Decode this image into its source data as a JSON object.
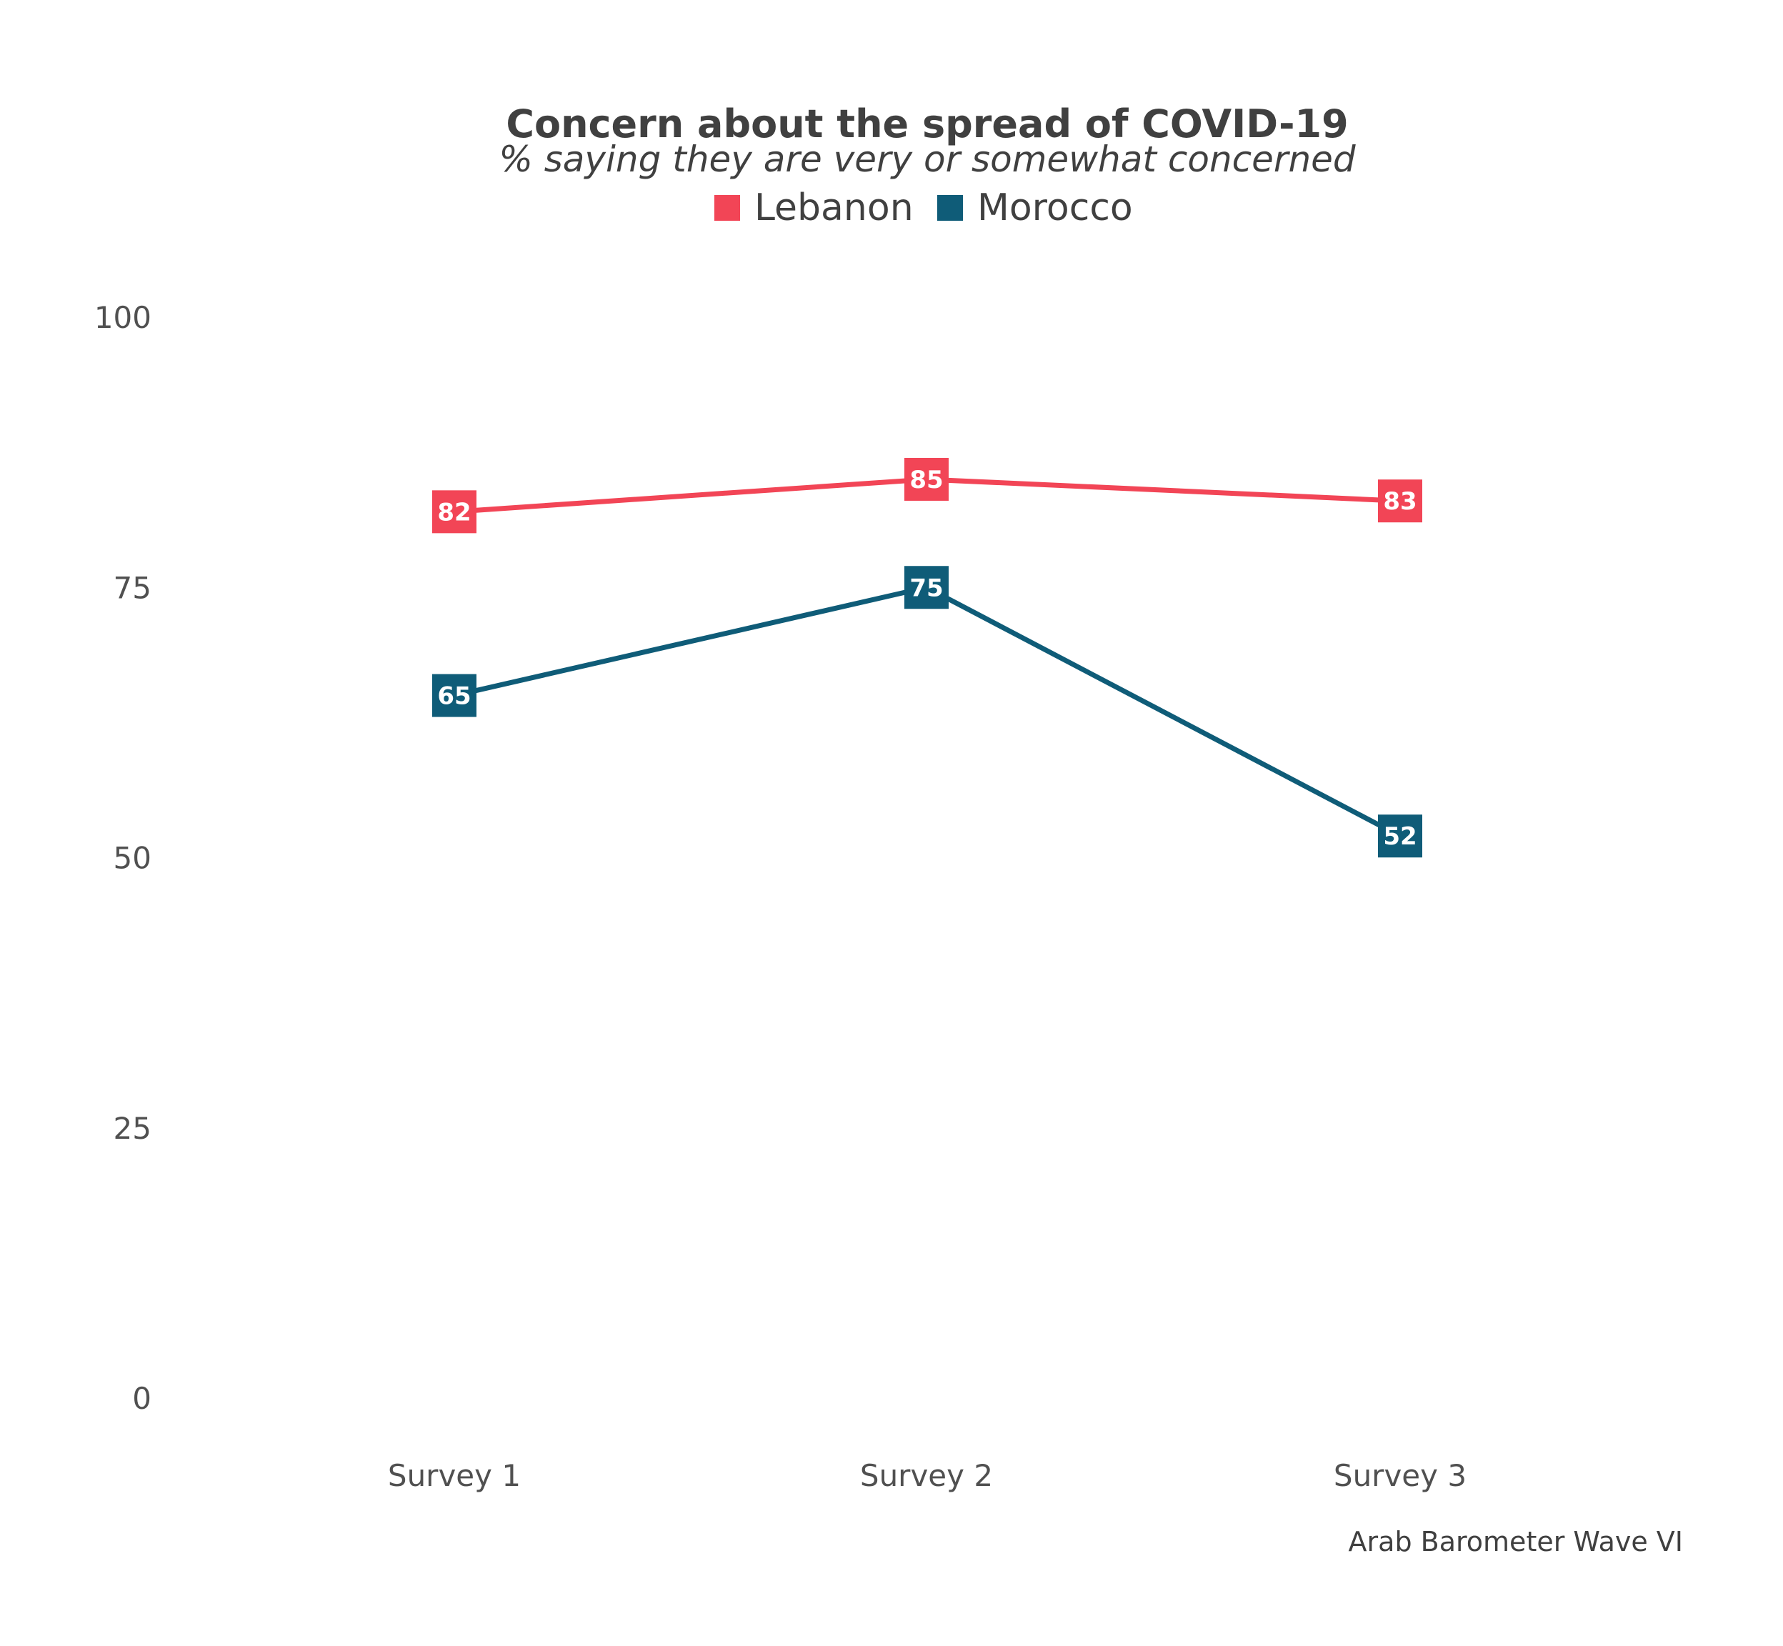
{
  "chart_data": {
    "type": "line",
    "title": "Concern about the spread of COVID-19",
    "subtitle": "% saying they are very or somewhat concerned",
    "caption": "Arab Barometer Wave VI",
    "categories": [
      "Survey 1",
      "Survey 2",
      "Survey 3"
    ],
    "ylim": [
      0,
      100
    ],
    "yticks": [
      0,
      25,
      50,
      75,
      100
    ],
    "grid": false,
    "legend_position": "top",
    "series": [
      {
        "name": "Lebanon",
        "color": "#F24556",
        "values": [
          82,
          85,
          83
        ]
      },
      {
        "name": "Morocco",
        "color": "#0F5C78",
        "values": [
          65,
          75,
          52
        ]
      }
    ]
  }
}
